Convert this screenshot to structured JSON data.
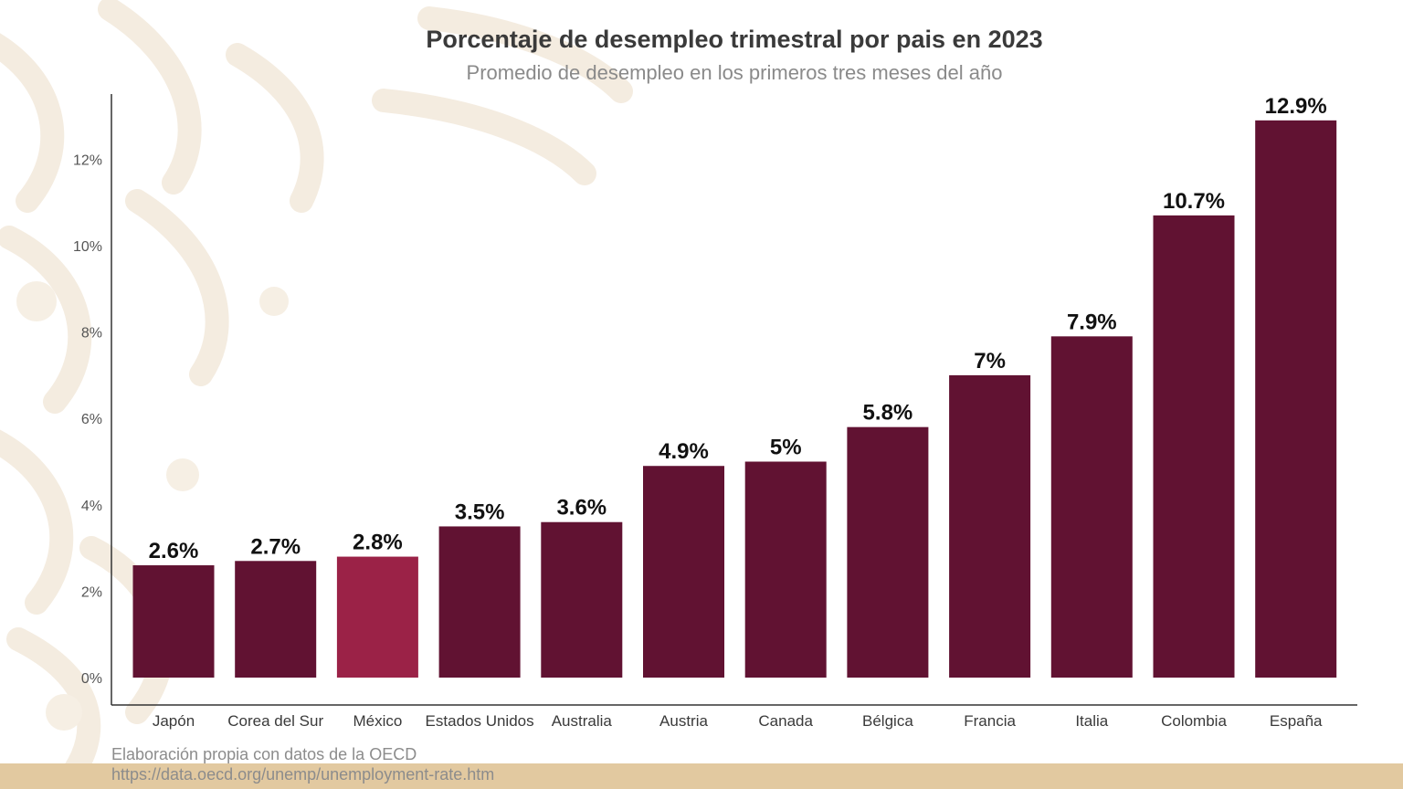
{
  "chart_data": {
    "type": "bar",
    "title": "Porcentaje de desempleo trimestral por pais en 2023",
    "subtitle": "Promedio de desempleo en los primeros tres meses del año",
    "xlabel": "",
    "ylabel": "",
    "categories": [
      "Japón",
      "Corea del Sur",
      "México",
      "Estados Unidos",
      "Australia",
      "Austria",
      "Canada",
      "Bélgica",
      "Francia",
      "Italia",
      "Colombia",
      "España"
    ],
    "values": [
      2.6,
      2.7,
      2.8,
      3.5,
      3.6,
      4.9,
      5.0,
      5.8,
      7.0,
      7.9,
      10.7,
      12.9
    ],
    "value_labels": [
      "2.6%",
      "2.7%",
      "2.8%",
      "3.5%",
      "3.6%",
      "4.9%",
      "5%",
      "5.8%",
      "7%",
      "7.9%",
      "10.7%",
      "12.9%"
    ],
    "highlight_category": "México",
    "ylim": [
      0,
      13.5
    ],
    "y_ticks": [
      0,
      2,
      4,
      6,
      8,
      10,
      12
    ],
    "y_tick_labels": [
      "0%",
      "2%",
      "4%",
      "6%",
      "8%",
      "10%",
      "12%"
    ],
    "grid": false,
    "legend": "none"
  },
  "source": {
    "line1": "Elaboración propia con datos de la OECD",
    "line2": "https://data.oecd.org/unemp/unemployment-rate.htm"
  },
  "colors": {
    "bar": "#611232",
    "highlight": "#9b2247",
    "text": "#3a3a3a",
    "axis": "#333333",
    "band": "#e2c9a0",
    "pattern": "#f4ece0"
  }
}
